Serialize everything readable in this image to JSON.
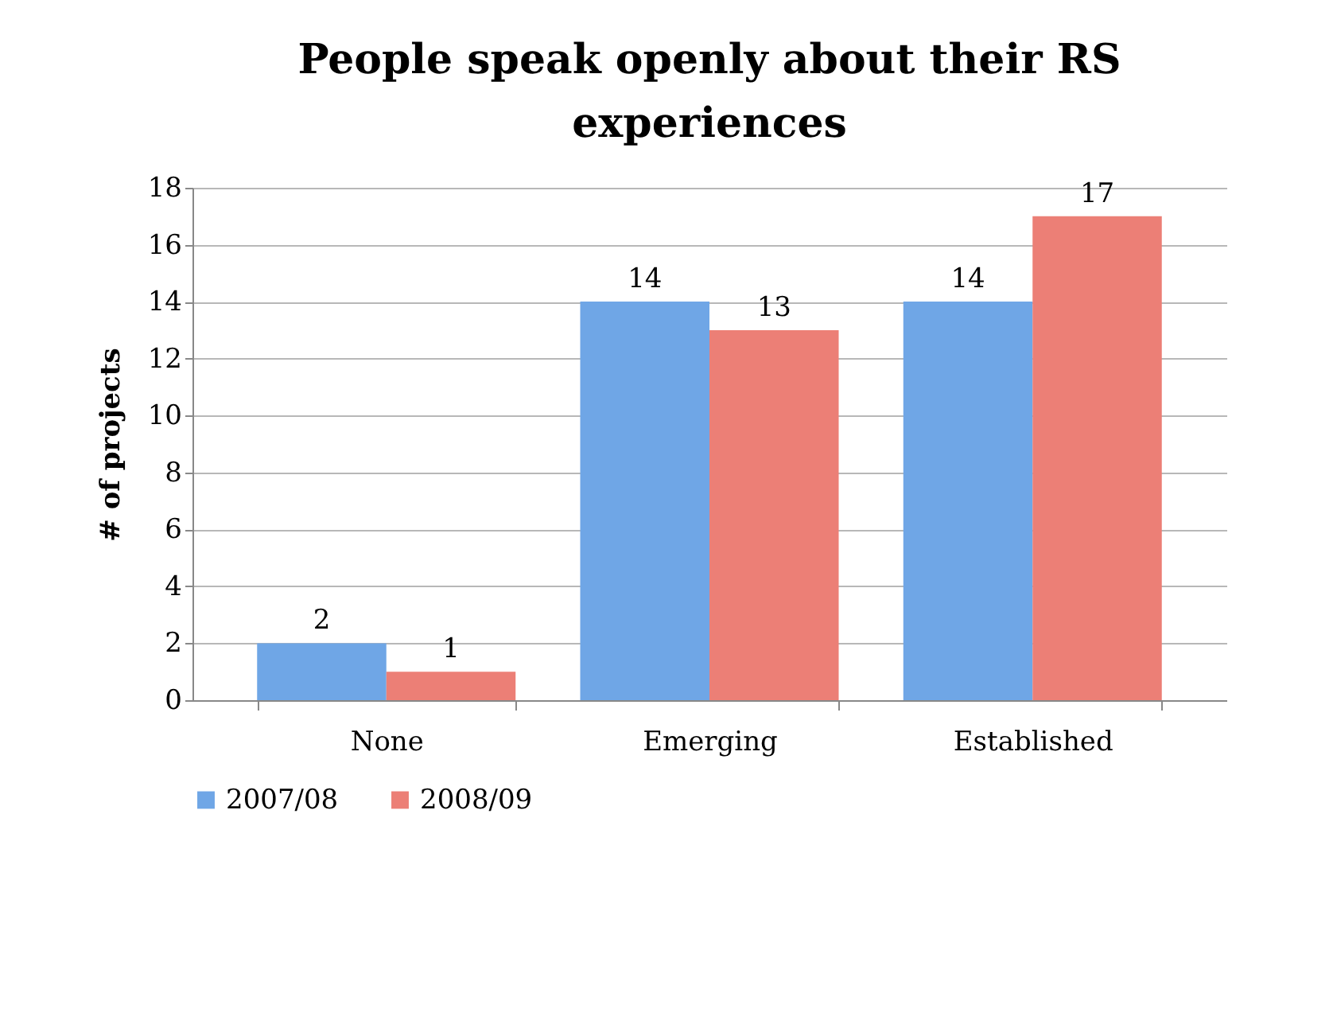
{
  "chart_data": {
    "type": "bar",
    "title": "People speak openly about their RS experiences",
    "ylabel": "# of projects",
    "categories": [
      "None",
      "Emerging",
      "Established"
    ],
    "series": [
      {
        "name": "2007/08",
        "color": "#6fa6e6",
        "values": [
          2,
          14,
          14
        ]
      },
      {
        "name": "2008/09",
        "color": "#ec7f76",
        "values": [
          1,
          13,
          17
        ]
      }
    ],
    "ylim": [
      0,
      18
    ],
    "yticks": [
      0,
      2,
      4,
      6,
      8,
      10,
      12,
      14,
      16,
      18
    ],
    "grid": "y",
    "legend": "bottom",
    "data_labels": true
  }
}
